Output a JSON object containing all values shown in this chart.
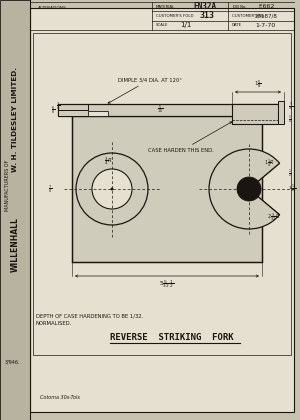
{
  "title": "REVERSE  STRIKING  FORK",
  "bg_color": "#c8c3b0",
  "paper_color": "#e6e0d0",
  "line_color": "#1a1510",
  "dim_color": "#1a1510",
  "fill_color": "#d0ccbc",
  "header": {
    "material": "EN32A",
    "job_no": "F.662",
    "customers_fold": "313",
    "customer_no": "28187/8",
    "scale": "1/1",
    "date": "1-7-70"
  },
  "notes": [
    "DEPTH OF CASE HARDENING TO BE 1/32.",
    "NORMALISED."
  ],
  "bottom_note": "Cotoma 30s-Tols"
}
